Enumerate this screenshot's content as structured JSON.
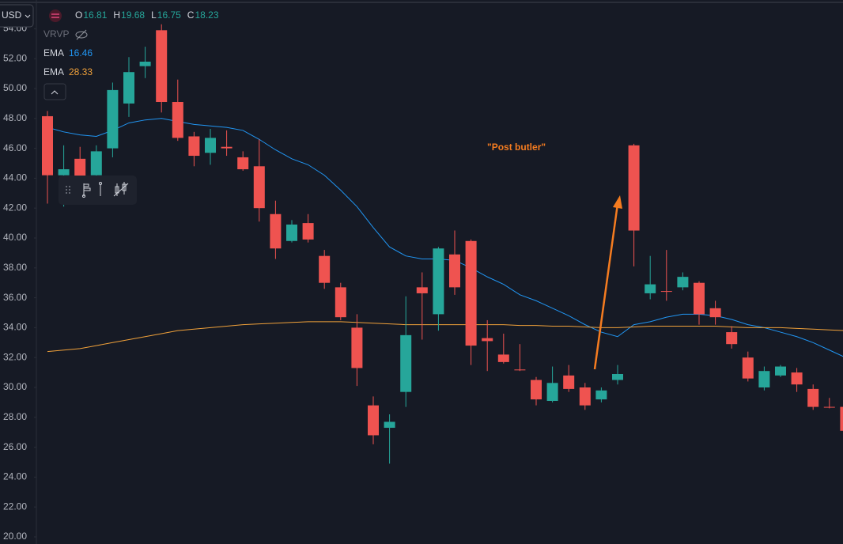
{
  "chart_data": {
    "type": "candlestick",
    "currency": "USD",
    "ohlc_legend": [
      {
        "label": "O",
        "value": "16.81"
      },
      {
        "label": "H",
        "value": "19.68"
      },
      {
        "label": "L",
        "value": "16.75"
      },
      {
        "label": "C",
        "value": "18.23"
      }
    ],
    "indicator": "VRVP",
    "up_color": "#26a69a",
    "down_color": "#ef5350",
    "open": [
      48.15,
      44.2,
      45.3,
      44.2,
      46.0,
      49.0,
      51.5,
      53.9,
      49.1,
      46.8,
      45.7,
      46.1,
      45.4,
      44.8,
      41.6,
      39.8,
      41.0,
      38.8,
      36.7,
      34.0,
      28.8,
      27.3,
      29.7,
      36.7,
      34.9,
      38.9,
      39.8,
      33.3,
      32.2,
      31.2,
      30.5,
      29.1,
      30.8,
      30.0,
      29.2,
      30.5,
      46.2,
      36.3,
      36.45,
      36.7,
      37.0,
      35.3,
      33.7,
      32.0,
      30.0,
      30.8,
      31.0,
      29.9,
      28.7,
      28.7
    ],
    "high": [
      48.5,
      46.2,
      46.1,
      46.2,
      50.4,
      52.1,
      52.8,
      54.3,
      50.6,
      47.1,
      47.3,
      47.2,
      45.8,
      46.6,
      42.5,
      41.2,
      41.6,
      39.2,
      37.0,
      34.9,
      29.4,
      28.2,
      36.1,
      37.7,
      39.4,
      40.5,
      39.9,
      34.5,
      33.6,
      32.9,
      30.7,
      31.4,
      31.5,
      30.3,
      30.0,
      31.5,
      46.3,
      38.8,
      39.2,
      37.7,
      37.1,
      35.8,
      34.1,
      32.4,
      31.4,
      31.5,
      31.3,
      30.2,
      29.3,
      29.1
    ],
    "low": [
      42.3,
      42.1,
      43.6,
      43.9,
      45.4,
      48.1,
      50.7,
      48.4,
      46.5,
      44.8,
      44.9,
      45.5,
      44.5,
      41.1,
      38.6,
      39.7,
      39.7,
      36.6,
      34.5,
      30.1,
      26.2,
      24.9,
      28.7,
      33.2,
      33.8,
      36.2,
      31.5,
      31.1,
      31.6,
      31.1,
      28.8,
      29.0,
      29.7,
      28.5,
      29.0,
      30.2,
      38.1,
      35.9,
      35.8,
      36.5,
      34.2,
      34.2,
      32.6,
      30.4,
      29.8,
      30.7,
      29.7,
      28.5,
      28.6,
      26.9
    ],
    "close": [
      44.2,
      44.6,
      44.0,
      45.8,
      49.9,
      51.1,
      51.8,
      49.1,
      46.7,
      45.5,
      46.7,
      46.0,
      44.6,
      42.0,
      39.3,
      40.9,
      39.9,
      37.0,
      34.7,
      31.3,
      26.8,
      27.7,
      33.5,
      36.3,
      39.3,
      36.7,
      32.8,
      33.1,
      31.7,
      31.15,
      29.2,
      30.3,
      29.9,
      28.8,
      29.8,
      30.9,
      40.5,
      36.9,
      36.4,
      37.4,
      34.9,
      34.7,
      32.9,
      30.6,
      31.1,
      31.4,
      30.2,
      28.7,
      28.65,
      27.1
    ],
    "series": [
      {
        "name": "EMA",
        "legend_value": "16.46",
        "color": "#2196f3",
        "values": [
          47.4,
          47.1,
          46.9,
          46.8,
          47.2,
          47.7,
          47.9,
          48.0,
          47.8,
          47.6,
          47.5,
          47.4,
          47.2,
          46.6,
          45.9,
          45.3,
          44.9,
          44.2,
          43.2,
          42.1,
          40.7,
          39.4,
          38.8,
          38.6,
          38.6,
          38.5,
          38.0,
          37.4,
          36.9,
          36.2,
          35.8,
          35.3,
          34.8,
          34.2,
          33.7,
          33.4,
          34.2,
          34.4,
          34.7,
          34.9,
          34.9,
          34.8,
          34.55,
          34.2,
          34.0,
          33.7,
          33.4,
          33.0,
          32.5,
          32.0
        ]
      },
      {
        "name": "EMA",
        "legend_value": "28.33",
        "color": "#f0a13a",
        "values": [
          32.4,
          32.5,
          32.6,
          32.8,
          33.0,
          33.2,
          33.4,
          33.6,
          33.8,
          33.9,
          34.0,
          34.1,
          34.2,
          34.25,
          34.3,
          34.35,
          34.4,
          34.4,
          34.4,
          34.35,
          34.3,
          34.25,
          34.2,
          34.2,
          34.2,
          34.2,
          34.2,
          34.2,
          34.2,
          34.15,
          34.15,
          34.1,
          34.1,
          34.05,
          34.0,
          34.0,
          34.05,
          34.1,
          34.1,
          34.1,
          34.1,
          34.1,
          34.05,
          34.0,
          34.0,
          34.0,
          33.95,
          33.9,
          33.85,
          33.8
        ]
      }
    ],
    "ylim": [
      20,
      54
    ],
    "yticks": [
      {
        "value": 20,
        "label": "20.00"
      },
      {
        "value": 22,
        "label": "22.00"
      },
      {
        "value": 24,
        "label": "24.00"
      },
      {
        "value": 26,
        "label": "26.00"
      },
      {
        "value": 28,
        "label": "28.00"
      },
      {
        "value": 30,
        "label": "30.00"
      },
      {
        "value": 32,
        "label": "32.00"
      },
      {
        "value": 34,
        "label": "34.00"
      },
      {
        "value": 36,
        "label": "36.00"
      },
      {
        "value": 38,
        "label": "38.00"
      },
      {
        "value": 40,
        "label": "40.00"
      },
      {
        "value": 42,
        "label": "42.00"
      },
      {
        "value": 44,
        "label": "44.00"
      },
      {
        "value": 46,
        "label": "46.00"
      },
      {
        "value": 48,
        "label": "48.00"
      },
      {
        "value": 50,
        "label": "50.00"
      },
      {
        "value": 52,
        "label": "52.00"
      },
      {
        "value": 54,
        "label": "54.00"
      }
    ],
    "annotations": [
      {
        "text": "\"Post butler\"",
        "color": "#f57c20"
      }
    ]
  }
}
